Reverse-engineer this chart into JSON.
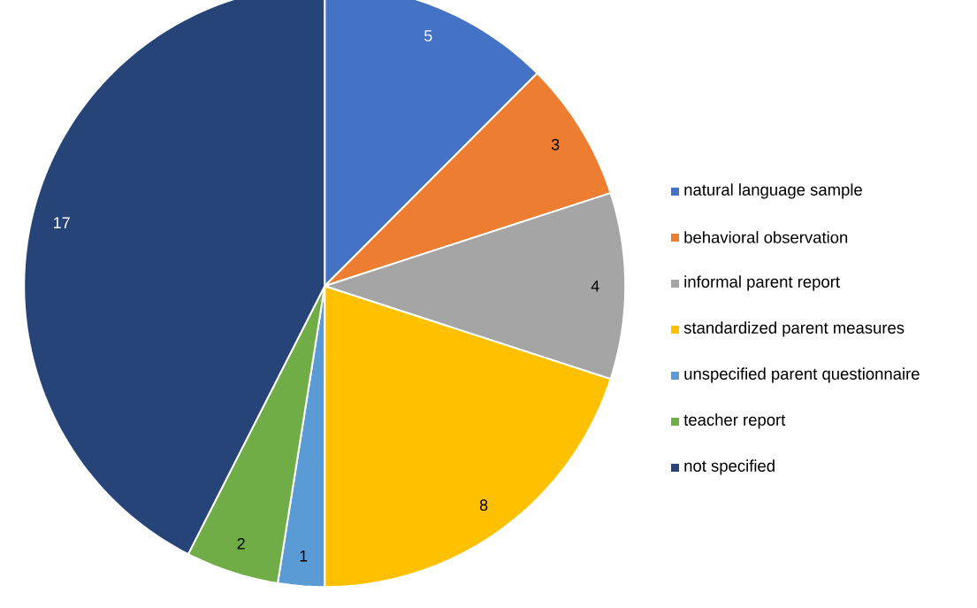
{
  "chart_data": {
    "type": "pie",
    "categories": [
      "natural language sample",
      "behavioral observation",
      "informal parent report",
      "standardized parent measures",
      "unspecified parent questionnaire",
      "teacher report",
      "not specified"
    ],
    "values": [
      5,
      3,
      4,
      8,
      1,
      2,
      17
    ],
    "colors": [
      "#4472c4",
      "#ed7d31",
      "#a5a5a5",
      "#ffc000",
      "#5b9bd5",
      "#70ad47",
      "#264478"
    ],
    "data_labels": true,
    "legend": "right"
  }
}
